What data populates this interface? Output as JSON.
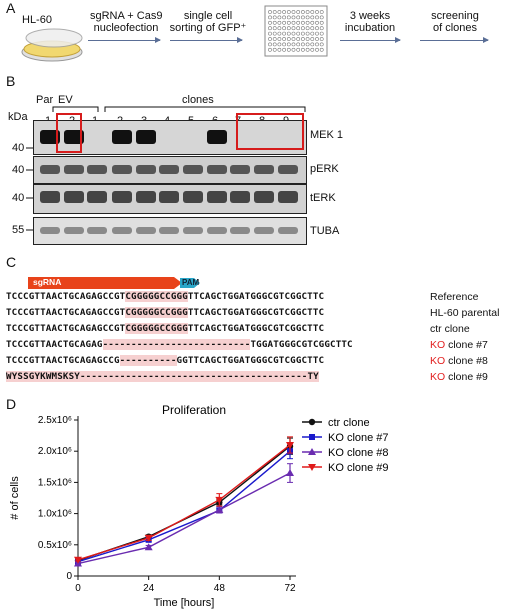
{
  "panels": {
    "a": "A",
    "b": "B",
    "c": "C",
    "d": "D"
  },
  "panelA": {
    "cell_line": "HL-60",
    "step1": "sgRNA + Cas9\nnucleofection",
    "step2": "single cell\nsorting of GFP⁺",
    "step3": "3 weeks\nincubation",
    "step4": "screening\nof clones"
  },
  "panelB": {
    "kda": "kDa",
    "group_par": "Par",
    "group_ev": "EV",
    "group_clones": "clones",
    "lane_numbers": [
      "1",
      "2",
      "1",
      "2",
      "3",
      "4",
      "5",
      "6",
      "7",
      "8",
      "9"
    ],
    "mw": {
      "m40a": "40",
      "m40b": "40",
      "m40c": "40",
      "m55": "55"
    },
    "blots": [
      "MEK 1",
      "pERK",
      "tERK",
      "TUBA"
    ],
    "mek1_present": [
      true,
      true,
      false,
      true,
      true,
      false,
      false,
      true,
      false,
      false,
      false
    ]
  },
  "panelC": {
    "sgrna": "sgRNA",
    "pam": "PAM",
    "rows": [
      {
        "seq": "TCCCGTTAACTGCAGAGCCGTCGGGGGCCGGGTTCAGCTGGATGGGCGTCGGCTTC",
        "label": "Reference",
        "ko": ""
      },
      {
        "seq": "TCCCGTTAACTGCAGAGCCGTCGGGGGCCGGGTTCAGCTGGATGGGCGTCGGCTTC",
        "label": "HL-60 parental",
        "ko": ""
      },
      {
        "seq": "TCCCGTTAACTGCAGAGCCGTCGGGGGCCGGGTTCAGCTGGATGGGCGTCGGCTTC",
        "label": "ctr clone",
        "ko": ""
      },
      {
        "seq": "TCCCGTTAACTGCAGAG--------------------------TGGATGGGCGTCGGCTTC",
        "label": "clone #7",
        "ko": "KO"
      },
      {
        "seq": "TCCCGTTAACTGCAGAGCCG----------GGTTCAGCTGGATGGGCGTCGGCTTC",
        "label": "clone #8",
        "ko": "KO"
      },
      {
        "seq": "WYSSGYKWMSKSY----------------------------------------TY",
        "label": "clone #9",
        "ko": "KO"
      }
    ]
  },
  "panelD": {
    "chart_data": {
      "type": "line",
      "title": "Proliferation",
      "xlabel": "Time [hours]",
      "ylabel": "# of cells",
      "x": [
        0,
        24,
        48,
        72
      ],
      "xticks": [
        "0",
        "24",
        "48",
        "72"
      ],
      "yticks": [
        "0",
        "0.5x10⁶",
        "1.0x10⁶",
        "1.5x10⁶",
        "2.0x10⁶",
        "2.5x10⁶"
      ],
      "ylim": [
        0,
        2500000
      ],
      "xlim": [
        0,
        72
      ],
      "legend": "top-left",
      "series": [
        {
          "name": "ctr clone",
          "color": "#111111",
          "marker": "circle",
          "values": [
            250000,
            630000,
            1180000,
            2080000
          ],
          "err": [
            20000,
            30000,
            40000,
            130000
          ]
        },
        {
          "name": "KO clone #7",
          "color": "#1a1acc",
          "marker": "square",
          "values": [
            230000,
            580000,
            1050000,
            2000000
          ],
          "err": [
            20000,
            30000,
            40000,
            120000
          ]
        },
        {
          "name": "KO clone #8",
          "color": "#6a2cb0",
          "marker": "triangle",
          "values": [
            200000,
            460000,
            1060000,
            1650000
          ],
          "err": [
            20000,
            30000,
            50000,
            150000
          ]
        },
        {
          "name": "KO clone #9",
          "color": "#e01a1a",
          "marker": "triangle-down",
          "values": [
            260000,
            610000,
            1220000,
            2100000
          ],
          "err": [
            20000,
            40000,
            100000,
            130000
          ]
        }
      ]
    }
  }
}
